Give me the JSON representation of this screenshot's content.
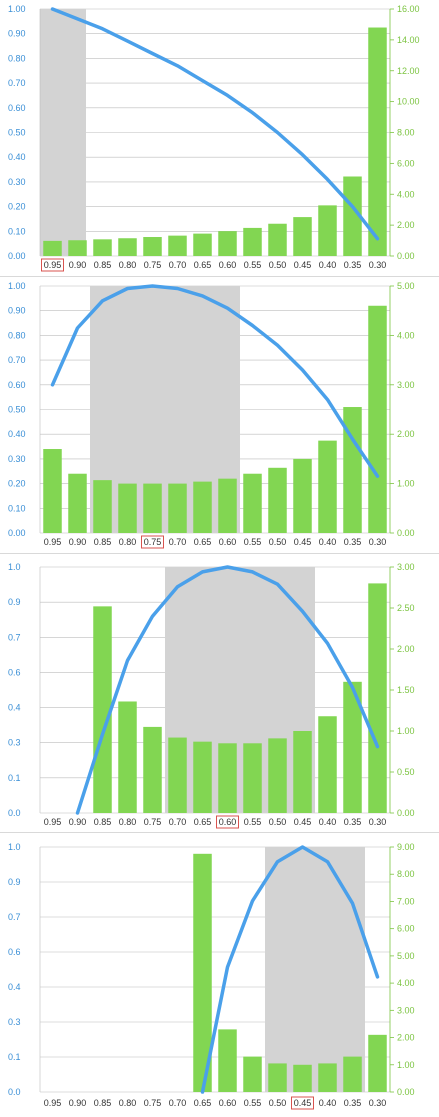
{
  "colors": {
    "bar": "#82d652",
    "line": "#4aa0ea",
    "shade": "#d3d3d3",
    "grid": "#bdbdbd",
    "left_tick": "#3a8fd6",
    "right_tick": "#7cc441",
    "highlight_box": "#d9534f"
  },
  "chart_data": [
    {
      "type": "bar+line",
      "categories": [
        "0.95",
        "0.90",
        "0.85",
        "0.80",
        "0.75",
        "0.70",
        "0.65",
        "0.60",
        "0.55",
        "0.50",
        "0.45",
        "0.40",
        "0.35",
        "0.30"
      ],
      "highlight_category": "0.95",
      "left_axis": {
        "ticks": [
          "0.00",
          "0.10",
          "0.20",
          "0.30",
          "0.40",
          "0.50",
          "0.60",
          "0.70",
          "0.80",
          "0.90",
          "1.00"
        ],
        "range": [
          0,
          1
        ]
      },
      "right_axis": {
        "ticks": [
          "0.00",
          "2.00",
          "4.00",
          "6.00",
          "8.00",
          "10.00",
          "12.00",
          "14.00",
          "16.00"
        ],
        "range": [
          0,
          16
        ]
      },
      "bars": [
        0.98,
        1.02,
        1.08,
        1.15,
        1.23,
        1.32,
        1.45,
        1.61,
        1.82,
        2.09,
        2.52,
        3.28,
        5.15,
        14.8
      ],
      "line": [
        1.0,
        0.96,
        0.92,
        0.87,
        0.82,
        0.77,
        0.71,
        0.65,
        0.58,
        0.5,
        0.41,
        0.31,
        0.2,
        0.07
      ],
      "shade_range": [
        0,
        1
      ],
      "grid": true
    },
    {
      "type": "bar+line",
      "categories": [
        "0.95",
        "0.90",
        "0.85",
        "0.80",
        "0.75",
        "0.70",
        "0.65",
        "0.60",
        "0.55",
        "0.50",
        "0.45",
        "0.40",
        "0.35",
        "0.30"
      ],
      "highlight_category": "0.75",
      "left_axis": {
        "ticks": [
          "0.00",
          "0.10",
          "0.20",
          "0.30",
          "0.40",
          "0.50",
          "0.60",
          "0.70",
          "0.80",
          "0.90",
          "1.00"
        ],
        "range": [
          0,
          1
        ]
      },
      "right_axis": {
        "ticks": [
          "0.00",
          "1.00",
          "2.00",
          "3.00",
          "4.00",
          "5.00"
        ],
        "range": [
          0,
          5
        ]
      },
      "bars": [
        1.7,
        1.2,
        1.07,
        1.0,
        1.0,
        1.0,
        1.04,
        1.1,
        1.2,
        1.32,
        1.5,
        1.87,
        2.55,
        4.6
      ],
      "line": [
        0.6,
        0.83,
        0.94,
        0.99,
        1.0,
        0.99,
        0.96,
        0.91,
        0.84,
        0.76,
        0.66,
        0.54,
        0.38,
        0.23
      ],
      "shade_range": [
        2,
        7
      ],
      "grid": true
    },
    {
      "type": "bar+line",
      "categories": [
        "0.95",
        "0.90",
        "0.85",
        "0.80",
        "0.75",
        "0.70",
        "0.65",
        "0.60",
        "0.55",
        "0.50",
        "0.45",
        "0.40",
        "0.35",
        "0.30"
      ],
      "highlight_category": "0.60",
      "left_axis": {
        "ticks": [
          "0.0",
          "0.1",
          "0.3",
          "0.4",
          "0.6",
          "0.7",
          "0.9",
          "1.0"
        ],
        "tick_values": [
          0,
          0.1667,
          0.3333,
          0.5,
          0.6667,
          0.8333,
          0.9167,
          1.0
        ],
        "range": [
          0,
          1
        ]
      },
      "right_axis": {
        "ticks": [
          "0.00",
          "0.50",
          "1.00",
          "1.50",
          "2.00",
          "2.50",
          "3.00"
        ],
        "range": [
          0,
          3
        ]
      },
      "bars": [
        null,
        null,
        2.52,
        1.36,
        1.05,
        0.92,
        0.87,
        0.85,
        0.85,
        0.91,
        1.0,
        1.18,
        1.6,
        2.8
      ],
      "line": [
        null,
        0.0,
        0.32,
        0.62,
        0.8,
        0.92,
        0.98,
        1.0,
        0.98,
        0.93,
        0.82,
        0.69,
        0.51,
        0.27
      ],
      "shade_range": [
        5,
        10
      ],
      "grid": true
    },
    {
      "type": "bar+line",
      "categories": [
        "0.95",
        "0.90",
        "0.85",
        "0.80",
        "0.75",
        "0.70",
        "0.65",
        "0.60",
        "0.55",
        "0.50",
        "0.45",
        "0.40",
        "0.35",
        "0.30"
      ],
      "highlight_category": "0.45",
      "left_axis": {
        "ticks": [
          "0.0",
          "0.1",
          "0.3",
          "0.4",
          "0.6",
          "0.7",
          "0.9",
          "1.0"
        ],
        "tick_values": [
          0,
          0.1111,
          0.2222,
          0.3333,
          0.5,
          0.6667,
          0.7778,
          0.8889
        ],
        "range": [
          0,
          0.8889
        ],
        "label_map": [
          0,
          1,
          2,
          3,
          4,
          5,
          6,
          7
        ]
      },
      "right_axis": {
        "ticks": [
          "0.00",
          "1.00",
          "2.00",
          "3.00",
          "4.00",
          "5.00",
          "6.00",
          "7.00",
          "8.00",
          "9.00"
        ],
        "range": [
          0,
          9
        ]
      },
      "bars": [
        null,
        null,
        null,
        null,
        null,
        null,
        8.75,
        2.3,
        1.3,
        1.05,
        1.0,
        1.05,
        1.3,
        2.1
      ],
      "line": [
        null,
        null,
        null,
        null,
        null,
        null,
        0.0,
        0.51,
        0.78,
        0.94,
        1.0,
        0.94,
        0.77,
        0.47
      ],
      "shade_range": [
        9,
        12
      ],
      "grid": true
    }
  ]
}
